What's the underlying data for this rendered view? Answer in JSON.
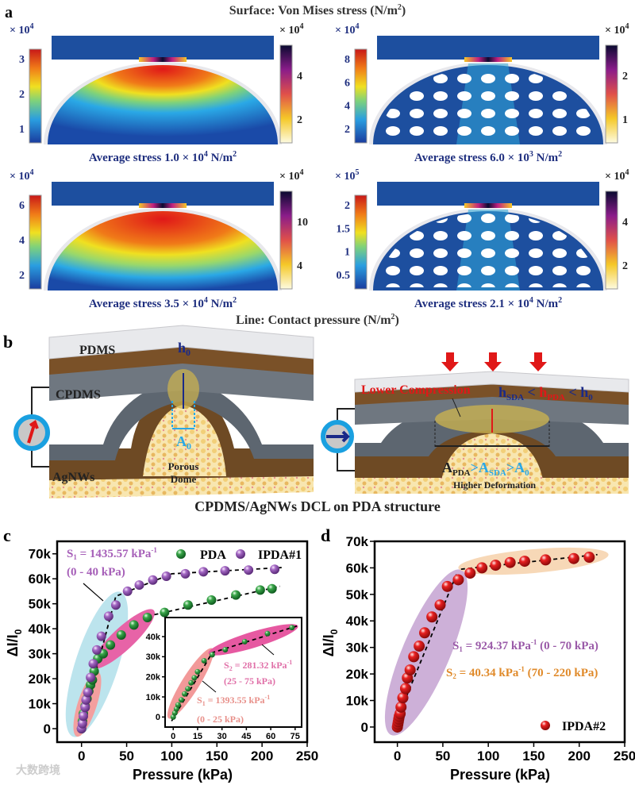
{
  "panel_a": {
    "label": "a",
    "title": {
      "pre": "Surface: Von Mises stress (N/m",
      "exp": "2",
      "post": ")"
    },
    "subpanels": [
      {
        "left_bar": {
          "mult": "× 10",
          "mult_exp": "4",
          "ticks": [
            "3",
            "2",
            "1"
          ]
        },
        "right_bar": {
          "mult": "× 10",
          "mult_exp": "4",
          "ticks": [
            "4",
            "2"
          ]
        },
        "caption": {
          "pre": "Average stress 1.0 × 10",
          "exp": "4",
          "unit": " N/m",
          "unit_exp": "2"
        },
        "porous": false
      },
      {
        "left_bar": {
          "mult": "× 10",
          "mult_exp": "4",
          "ticks": [
            "8",
            "6",
            "4",
            "2"
          ]
        },
        "right_bar": {
          "mult": "× 10",
          "mult_exp": "4",
          "ticks": [
            "2",
            "1"
          ]
        },
        "caption": {
          "pre": "Average stress 6.0 × 10",
          "exp": "3",
          "unit": " N/m",
          "unit_exp": "2"
        },
        "porous": true
      },
      {
        "left_bar": {
          "mult": "× 10",
          "mult_exp": "4",
          "ticks": [
            "6",
            "4",
            "2"
          ]
        },
        "right_bar": {
          "mult": "× 10",
          "mult_exp": "4",
          "ticks": [
            "10",
            "4"
          ]
        },
        "caption": {
          "pre": "Average stress 3.5 × 10",
          "exp": "4",
          "unit": " N/m",
          "unit_exp": "2"
        },
        "porous": false
      },
      {
        "left_bar": {
          "mult": "× 10",
          "mult_exp": "5",
          "ticks": [
            "2",
            "1.5",
            "1",
            "0.5"
          ]
        },
        "right_bar": {
          "mult": "× 10",
          "mult_exp": "4",
          "ticks": [
            "4",
            "2"
          ]
        },
        "caption": {
          "pre": "Average stress 2.1 × 10",
          "exp": "4",
          "unit": " N/m",
          "unit_exp": "2"
        },
        "porous": true
      }
    ],
    "footer": {
      "pre": "Line: Contact pressure (N/m",
      "exp": "2",
      "post": ")"
    }
  },
  "panel_b": {
    "label": "b",
    "layers": {
      "pdms": "PDMS",
      "cpdms": "CPDMS",
      "agnws": "AgNWs"
    },
    "h0": {
      "base": "h",
      "sub": "0"
    },
    "a0": {
      "base": "A",
      "sub": "0"
    },
    "porous_dome": [
      "Porous",
      "Dome"
    ],
    "lower_compression": "Lower Compression",
    "h_relation": {
      "h1": "h",
      "s1": "SDA",
      "lt1": " < ",
      "h2": "h",
      "s2": "PDA",
      "lt2": " < ",
      "h3": "h",
      "s3": "0"
    },
    "a_relation": {
      "a1": "A",
      "s1": "PDA",
      "gt1": ">",
      "a2": "A",
      "s2": "SDA",
      "gt2": ">",
      "a3": "A",
      "s3": "0"
    },
    "higher_deformation": "Higher Deformation",
    "caption": "CPDMS/AgNWs DCL on PDA structure"
  },
  "colors": {
    "pda": "#1f8a3a",
    "ipda1": "#9a5bb8",
    "ipda2": "#e01818",
    "bar_blue": "#1d4f9f",
    "tick_blue": "#1f2f7f"
  },
  "chart_data": [
    {
      "id": "c",
      "label": "c",
      "type": "scatter",
      "xlabel": "Pressure (kPa)",
      "ylabel": {
        "pre": "ΔI/I",
        "sub": "0"
      },
      "xlim": [
        -27,
        250
      ],
      "ylim": [
        -5400,
        75000
      ],
      "xticks": [
        0,
        50,
        100,
        150,
        200,
        250
      ],
      "xtick_labels": [
        "0",
        "50",
        "100",
        "150",
        "200",
        "250"
      ],
      "yticks": [
        0,
        10000,
        20000,
        30000,
        40000,
        50000,
        60000,
        70000
      ],
      "ytick_labels": [
        "0",
        "10k",
        "20k",
        "30k",
        "40k",
        "50k",
        "60k",
        "70k"
      ],
      "legend": [
        "PDA",
        "IPDA#1"
      ],
      "legend_position": "top-right",
      "series": [
        {
          "name": "PDA",
          "x": [
            0,
            1,
            2,
            4,
            6,
            8,
            10,
            12,
            14,
            18,
            24,
            32,
            44,
            58,
            73,
            92,
            118,
            144,
            171,
            198,
            211
          ],
          "y": [
            0,
            3000,
            6000,
            9000,
            12000,
            15000,
            17500,
            19500,
            23000,
            28000,
            30000,
            33500,
            37500,
            41500,
            44500,
            46500,
            49500,
            51500,
            53500,
            55500,
            56000
          ]
        },
        {
          "name": "IPDA#1",
          "x": [
            0,
            1,
            2,
            4,
            5,
            7,
            10,
            13,
            17,
            22,
            30,
            38,
            51,
            64,
            79,
            94,
            115,
            135,
            159,
            185,
            214
          ],
          "y": [
            0,
            2000,
            5000,
            8500,
            11500,
            14500,
            20500,
            26000,
            31500,
            37000,
            45000,
            49500,
            55000,
            57500,
            59500,
            61000,
            62000,
            62800,
            63200,
            63500,
            63800
          ]
        }
      ],
      "fit_lines": [
        {
          "x": [
            -2,
            38,
            100,
            222
          ],
          "y": [
            -1500,
            53000,
            62000,
            64500
          ]
        },
        {
          "x": [
            73,
            220
          ],
          "y": [
            45000,
            57000
          ]
        }
      ],
      "annotations": [
        {
          "pre": "S",
          "sub": "1",
          "mid": " = 1435.57 kPa",
          "sup": "-1",
          "range": "(0 - 40 kPa)"
        }
      ]
    },
    {
      "id": "c-inset",
      "type": "scatter",
      "xlim": [
        -5,
        79
      ],
      "ylim": [
        -5000,
        49500
      ],
      "xticks": [
        0,
        15,
        30,
        45,
        60,
        75
      ],
      "xtick_labels": [
        "0",
        "15",
        "30",
        "45",
        "60",
        "75"
      ],
      "yticks": [
        0,
        10000,
        20000,
        30000,
        40000
      ],
      "ytick_labels": [
        "0",
        "10k",
        "20k",
        "30k",
        "40k"
      ],
      "series": [
        {
          "name": "PDA",
          "x": [
            0,
            1,
            2,
            3,
            5,
            7,
            9,
            11,
            13,
            15,
            19,
            24,
            32,
            44,
            58,
            73
          ],
          "y": [
            0,
            2000,
            4000,
            6000,
            8500,
            11500,
            14000,
            17000,
            19500,
            22500,
            28000,
            31000,
            33500,
            37500,
            41500,
            44500
          ]
        }
      ],
      "fit_lines": [
        {
          "x": [
            -1,
            24,
            77
          ],
          "y": [
            -2000,
            32000,
            45500
          ]
        }
      ],
      "annotations": [
        {
          "pre": "S",
          "sub": "2",
          "mid": " = 281.32 kPa",
          "sup": "-1",
          "range": "(25 - 75 kPa)"
        },
        {
          "pre": "S",
          "sub": "1",
          "mid": " = 1393.55 kPa",
          "sup": "-1",
          "range": "(0 - 25 kPa)"
        }
      ]
    },
    {
      "id": "d",
      "label": "d",
      "type": "scatter",
      "xlabel": "Pressure (kPa)",
      "ylabel": {
        "pre": "ΔI/I",
        "sub": "0"
      },
      "xlim": [
        -25,
        250
      ],
      "ylim": [
        -5700,
        70000
      ],
      "xticks": [
        0,
        50,
        100,
        150,
        200,
        250
      ],
      "xtick_labels": [
        "0",
        "50",
        "100",
        "150",
        "200",
        "250"
      ],
      "yticks": [
        0,
        10000,
        20000,
        30000,
        40000,
        50000,
        60000,
        70000
      ],
      "ytick_labels": [
        "0",
        "10k",
        "20k",
        "30k",
        "40k",
        "50k",
        "60k",
        "70k"
      ],
      "legend": [
        "IPDA#2"
      ],
      "legend_position": "bottom-right",
      "series": [
        {
          "name": "IPDA#2",
          "x": [
            0,
            0.5,
            1,
            1.5,
            2,
            3,
            4,
            6,
            9,
            11,
            14,
            18,
            24,
            30,
            38,
            47,
            55,
            67,
            80,
            93,
            108,
            124,
            140,
            163,
            194,
            211
          ],
          "y": [
            0,
            1000,
            2000,
            3000,
            4000,
            5000,
            7500,
            11000,
            14500,
            18500,
            21500,
            26500,
            30500,
            35500,
            41500,
            46000,
            53000,
            55500,
            58000,
            60000,
            61000,
            62000,
            62500,
            63000,
            63500,
            64000
          ]
        }
      ],
      "fit_lines": [
        {
          "x": [
            -5,
            65
          ],
          "y": [
            -1000,
            57500
          ]
        },
        {
          "x": [
            70,
            220
          ],
          "y": [
            59500,
            65000
          ]
        }
      ],
      "annotations": [
        {
          "pre": "S",
          "sub": "1",
          "mid": " = 924.37 kPa",
          "sup": "-1",
          "range": " (0 - 70 kPa)"
        },
        {
          "pre": "S",
          "sub": "2",
          "mid": " = 40.34 kPa",
          "sup": "-1",
          "range": " (70 - 220 kPa)"
        }
      ]
    }
  ],
  "watermark": "大数跨境"
}
